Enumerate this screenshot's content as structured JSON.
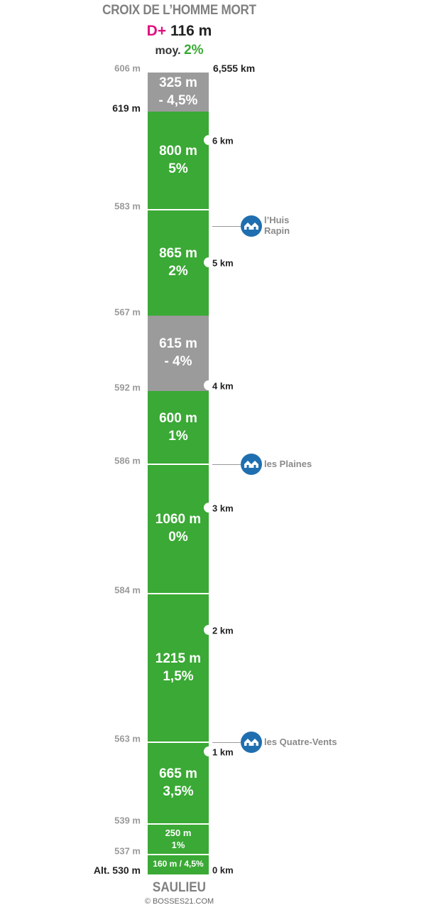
{
  "header": {
    "title": "CROIX DE L’HOMME MORT",
    "dplus_label": "D+",
    "dplus_value": "116 m",
    "avg_label": "moy.",
    "avg_value": "2%"
  },
  "top_distance": "6,555 km",
  "segments": [
    {
      "dist": "325 m",
      "grad": "- 4,5%",
      "color": "grey"
    },
    {
      "dist": "800 m",
      "grad": "5%",
      "color": "green"
    },
    {
      "dist": "865 m",
      "grad": "2%",
      "color": "green"
    },
    {
      "dist": "615 m",
      "grad": "- 4%",
      "color": "grey"
    },
    {
      "dist": "600 m",
      "grad": "1%",
      "color": "green"
    },
    {
      "dist": "1060 m",
      "grad": "0%",
      "color": "green"
    },
    {
      "dist": "1215 m",
      "grad": "1,5%",
      "color": "green"
    },
    {
      "dist": "665 m",
      "grad": "3,5%",
      "color": "green"
    },
    {
      "dist": "250 m",
      "grad": "1%",
      "color": "green"
    },
    {
      "dist": "160 m / 4,5%",
      "grad": "",
      "color": "green"
    }
  ],
  "altitudes": [
    "606 m",
    "619 m",
    "583 m",
    "567 m",
    "592 m",
    "586 m",
    "584 m",
    "563 m",
    "539 m",
    "537 m",
    "Alt. 530 m"
  ],
  "km_markers": [
    "6 km",
    "5 km",
    "4 km",
    "3 km",
    "2 km",
    "1 km",
    "0 km"
  ],
  "places": [
    {
      "name_line1": "l’Huis",
      "name_line2": "Rapin",
      "icon": "houses-icon"
    },
    {
      "name_line1": "les Plaines",
      "name_line2": "",
      "icon": "houses-icon"
    },
    {
      "name_line1": "les Quatre-Vents",
      "name_line2": "",
      "icon": "houses-icon"
    }
  ],
  "start_town": "SAULIEU",
  "credit": "© BOSSES21.COM",
  "colors": {
    "climb": "#3aa935",
    "descent": "#9b9b9b",
    "title_accent": "#e0117f",
    "place_icon": "#1f6fb0"
  }
}
